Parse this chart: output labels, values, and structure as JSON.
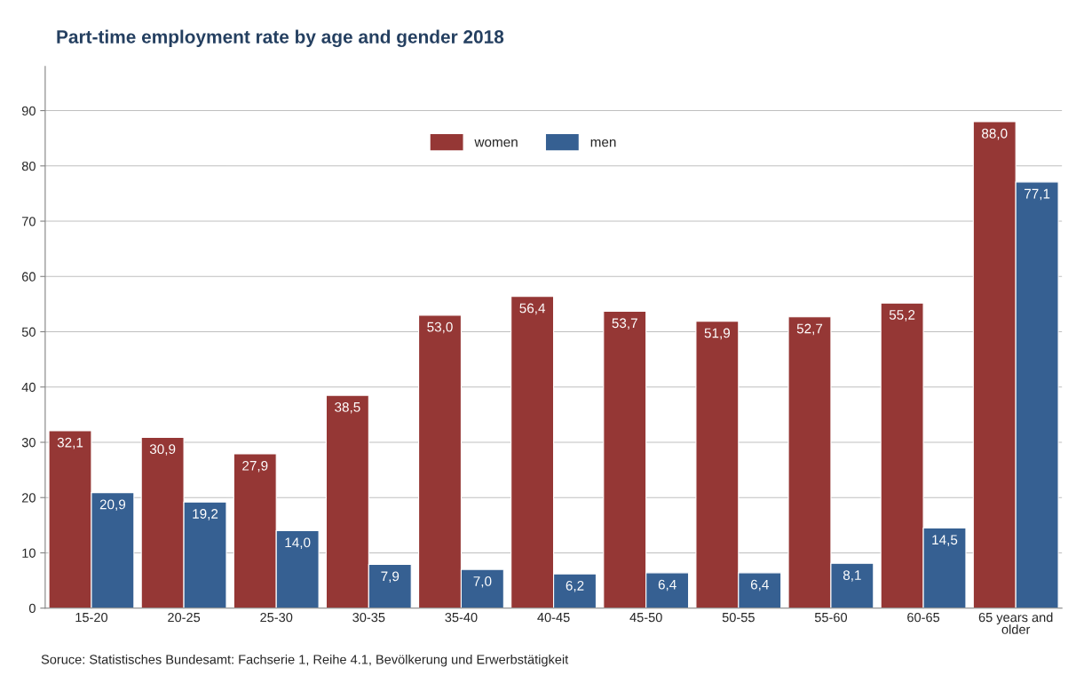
{
  "chart_data": {
    "type": "bar",
    "title": "Part-time employment rate by age and gender 2018",
    "categories": [
      "15-20",
      "20-25",
      "25-30",
      "30-35",
      "35-40",
      "40-45",
      "45-50",
      "50-55",
      "55-60",
      "60-65",
      "65 years and\nolder"
    ],
    "series": [
      {
        "name": "women",
        "color": "#953735",
        "values": [
          32.1,
          30.9,
          27.9,
          38.5,
          53.0,
          56.4,
          53.7,
          51.9,
          52.7,
          55.2,
          88.0
        ],
        "value_labels": [
          "32,1",
          "30,9",
          "27,9",
          "38,5",
          "53,0",
          "56,4",
          "53,7",
          "51,9",
          "52,7",
          "55,2",
          "88,0"
        ]
      },
      {
        "name": "men",
        "color": "#366092",
        "values": [
          20.9,
          19.2,
          14.0,
          7.9,
          7.0,
          6.2,
          6.4,
          6.4,
          8.1,
          14.5,
          77.1
        ],
        "value_labels": [
          "20,9",
          "19,2",
          "14,0",
          "7,9",
          "7,0",
          "6,2",
          "6,4",
          "6,4",
          "8,1",
          "14,5",
          "77,1"
        ]
      }
    ],
    "ylim": [
      0,
      98
    ],
    "yticks": [
      0,
      10,
      20,
      30,
      40,
      50,
      60,
      70,
      80,
      90
    ],
    "grid": "y",
    "legend": "top",
    "annotations": [
      "Soruce: Statistisches Bundesamt: Fachserie 1, Reihe 4.1, Bevölkerung und Erwerbstätigkeit"
    ]
  }
}
